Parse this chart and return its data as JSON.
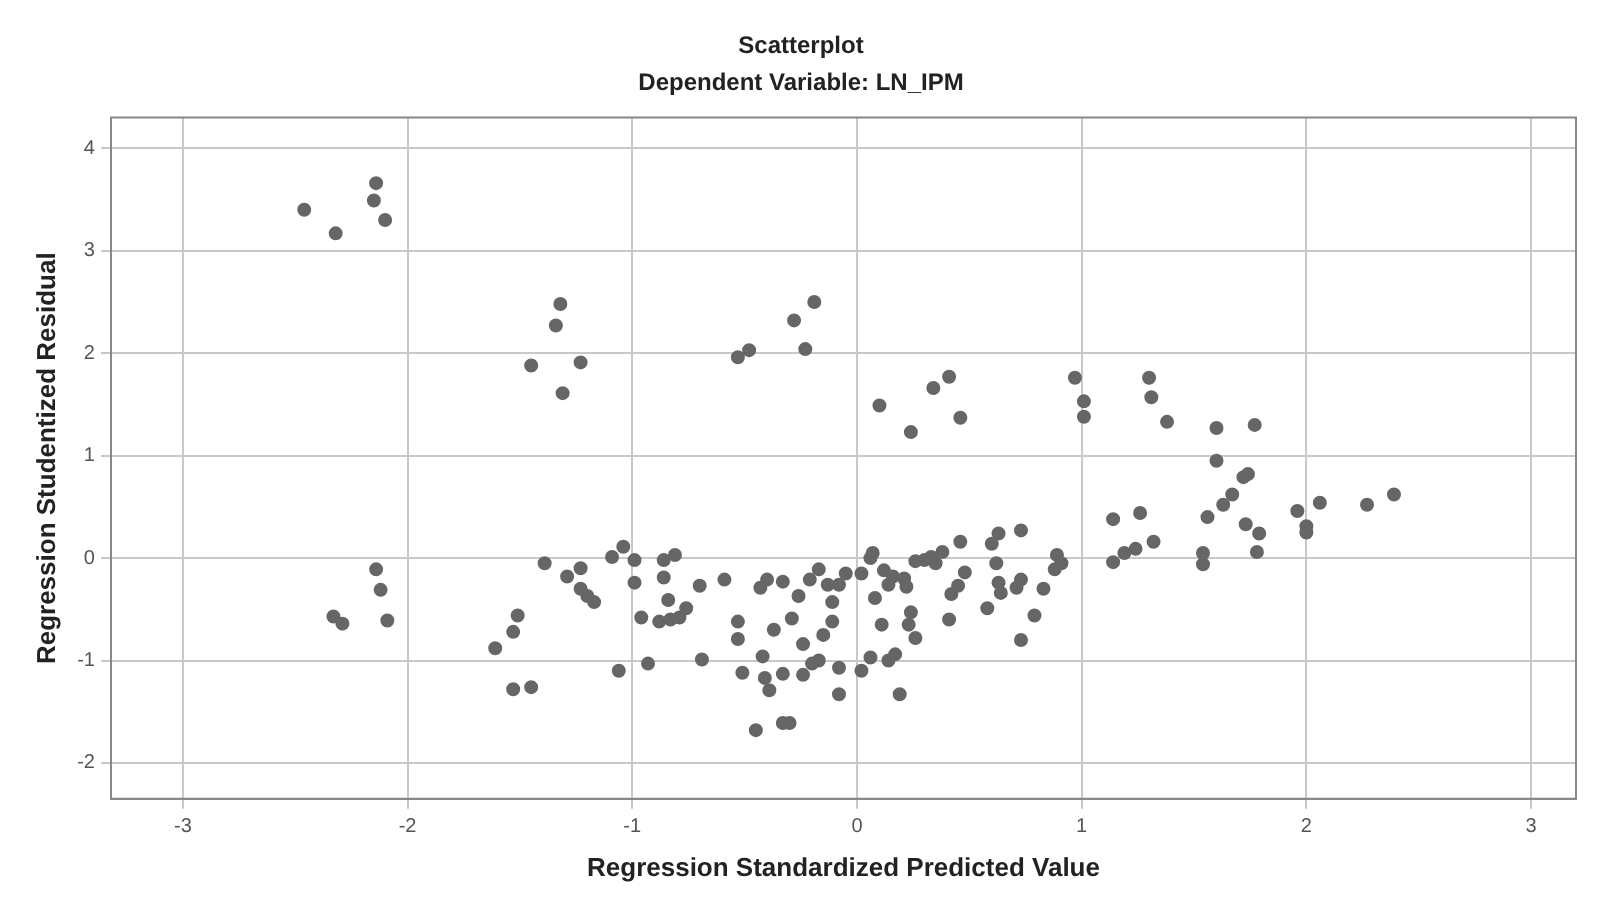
{
  "chart_data": {
    "type": "scatter",
    "title": "Scatterplot",
    "subtitle": "Dependent Variable: LN_IPM",
    "xlabel": "Regression Standardized Predicted Value",
    "ylabel": "Regression Studentized Residual",
    "x": [
      -2.46,
      -2.32,
      -2.14,
      -2.15,
      -2.1,
      -1.32,
      -1.34,
      -1.45,
      -1.23,
      -1.31,
      -0.53,
      -0.48,
      -0.28,
      -0.19,
      -0.23,
      0.1,
      0.24,
      0.34,
      0.41,
      0.46,
      0.97,
      1.01,
      1.01,
      1.3,
      1.31,
      1.38,
      1.6,
      1.77,
      1.6,
      1.74,
      1.72,
      1.67,
      1.63,
      1.56,
      1.73,
      1.79,
      1.78,
      1.54,
      1.54,
      1.96,
      2.0,
      2.0,
      2.06,
      2.27,
      2.39,
      1.14,
      1.26,
      1.14,
      1.19,
      1.24,
      1.32,
      0.73,
      0.63,
      0.6,
      0.46,
      0.38,
      0.33,
      0.3,
      0.35,
      0.26,
      0.89,
      0.91,
      0.88,
      0.83,
      0.79,
      0.73,
      0.73,
      0.71,
      0.63,
      0.64,
      0.58,
      0.62,
      0.48,
      0.45,
      0.42,
      0.41,
      0.24,
      0.26,
      0.23,
      0.17,
      0.14,
      0.06,
      0.02,
      0.19,
      -0.08,
      -0.08,
      -0.17,
      -0.24,
      -0.3,
      0.07,
      0.06,
      0.02,
      0.12,
      0.16,
      0.21,
      0.22,
      0.14,
      0.08,
      0.11,
      -0.05,
      -0.08,
      -0.11,
      -0.11,
      -0.15,
      -0.24,
      -0.17,
      -0.21,
      -0.26,
      -0.29,
      -0.2,
      -0.13,
      -2.14,
      -2.12,
      -2.09,
      -2.33,
      -2.29,
      -1.61,
      -1.53,
      -1.51,
      -1.53,
      -1.45,
      -1.39,
      -1.29,
      -1.23,
      -1.23,
      -1.2,
      -1.17,
      -1.09,
      -1.04,
      -0.99,
      -0.99,
      -1.06,
      -0.93,
      -0.96,
      -0.88,
      -0.83,
      -0.79,
      -0.76,
      -0.84,
      -0.86,
      -0.86,
      -0.81,
      -0.7,
      -0.69,
      -0.59,
      -0.53,
      -0.53,
      -0.51,
      -0.45,
      -0.42,
      -0.41,
      -0.39,
      -0.43,
      -0.4,
      -0.37,
      -0.33,
      -0.33,
      -0.33
    ],
    "values": [
      3.4,
      3.17,
      3.66,
      3.49,
      3.3,
      2.48,
      2.27,
      1.88,
      1.91,
      1.61,
      1.96,
      2.03,
      2.32,
      2.5,
      2.04,
      1.49,
      1.23,
      1.66,
      1.77,
      1.37,
      1.76,
      1.53,
      1.38,
      1.76,
      1.57,
      1.33,
      1.27,
      1.3,
      0.95,
      0.82,
      0.79,
      0.62,
      0.52,
      0.4,
      0.33,
      0.24,
      0.06,
      0.05,
      -0.06,
      0.46,
      0.31,
      0.25,
      0.54,
      0.52,
      0.62,
      0.38,
      0.44,
      -0.04,
      0.05,
      0.09,
      0.16,
      0.27,
      0.24,
      0.14,
      0.16,
      0.06,
      0.01,
      -0.02,
      -0.05,
      -0.03,
      0.03,
      -0.05,
      -0.11,
      -0.3,
      -0.56,
      -0.8,
      -0.21,
      -0.29,
      -0.24,
      -0.34,
      -0.49,
      -0.05,
      -0.14,
      -0.27,
      -0.35,
      -0.6,
      -0.53,
      -0.78,
      -0.65,
      -0.94,
      -1.0,
      -0.97,
      -1.1,
      -1.33,
      -1.33,
      -1.07,
      -1.0,
      -1.14,
      -1.61,
      0.05,
      0.0,
      -0.15,
      -0.12,
      -0.18,
      -0.2,
      -0.28,
      -0.26,
      -0.39,
      -0.65,
      -0.15,
      -0.26,
      -0.43,
      -0.62,
      -0.75,
      -0.84,
      -0.11,
      -0.21,
      -0.37,
      -0.59,
      -1.03,
      -0.26,
      -0.11,
      -0.31,
      -0.61,
      -0.57,
      -0.64,
      -0.88,
      -0.72,
      -0.56,
      -1.28,
      -1.26,
      -0.05,
      -0.18,
      -0.1,
      -0.3,
      -0.37,
      -0.43,
      0.01,
      0.11,
      -0.02,
      -0.24,
      -1.1,
      -1.03,
      -0.58,
      -0.62,
      -0.6,
      -0.58,
      -0.49,
      -0.41,
      -0.19,
      -0.02,
      0.03,
      -0.27,
      -0.99,
      -0.21,
      -0.62,
      -0.79,
      -1.12,
      -1.68,
      -0.96,
      -1.17,
      -1.29,
      -0.29,
      -0.21,
      -0.7,
      -1.13,
      -1.61,
      -0.23
    ],
    "color": "#666666",
    "marker": "circle",
    "grid": true,
    "xlim": [
      -3.32,
      3.2
    ],
    "xticks": [
      -3,
      -2,
      -1,
      0,
      1,
      2,
      3
    ],
    "ylim": [
      -2.35,
      4.3
    ],
    "yticks": [
      -2,
      -1,
      0,
      1,
      2,
      3,
      4
    ]
  }
}
